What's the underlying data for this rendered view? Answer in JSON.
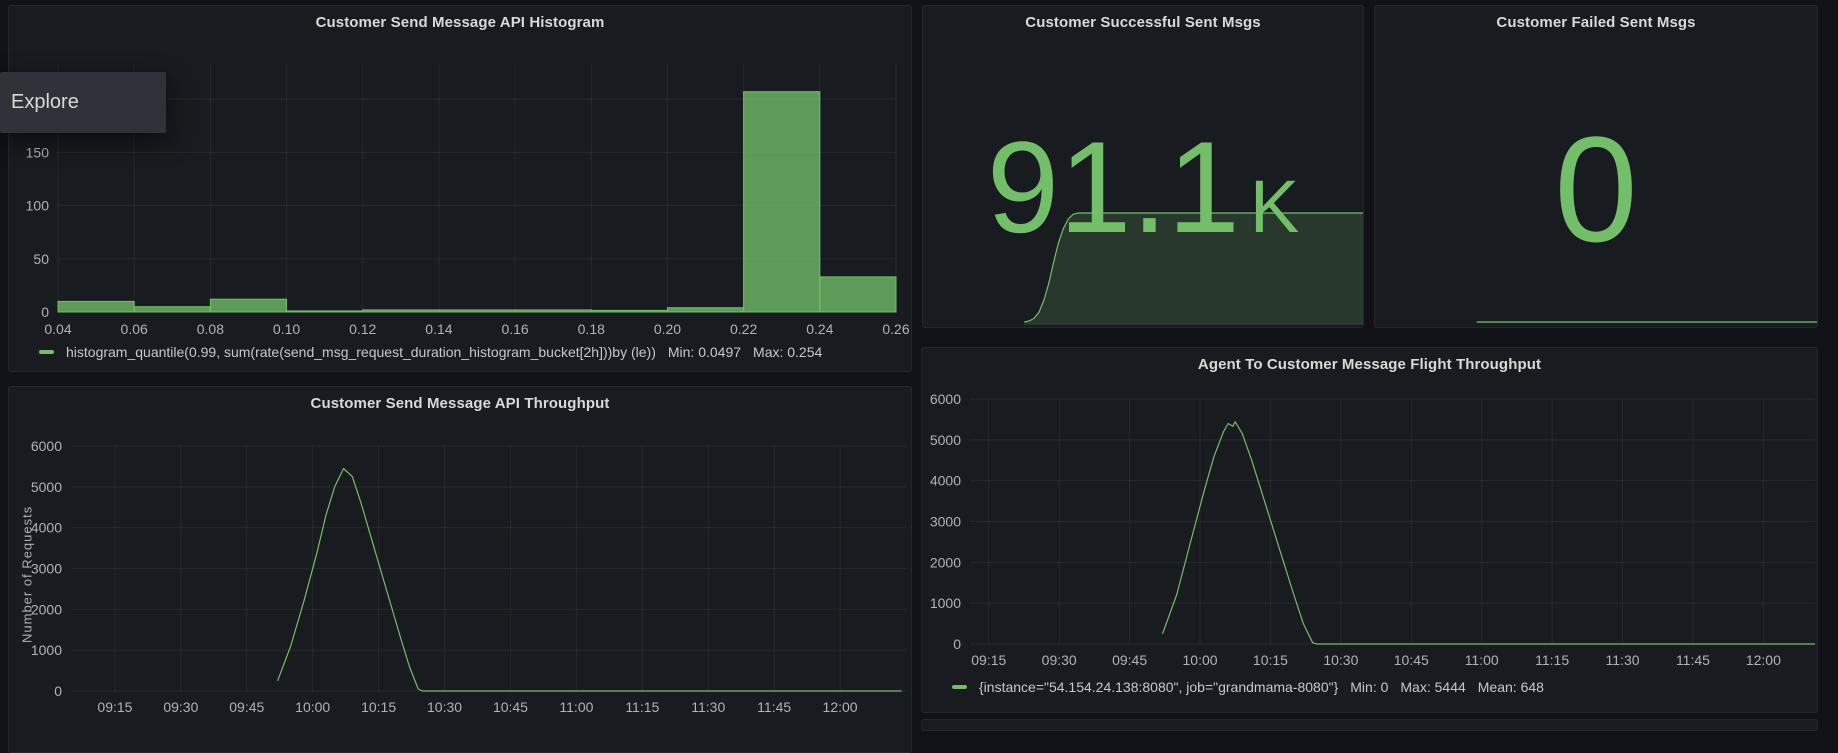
{
  "colors": {
    "green": "#73BF69",
    "bar_fill": "rgba(115,191,105,0.78)",
    "area_fill": "rgba(115,191,105,0.18)",
    "panel_bg": "#181b1f",
    "page_bg": "#111217"
  },
  "explore_tooltip": {
    "label": "Explore"
  },
  "panels": {
    "histogram": {
      "title": "Customer Send Message API Histogram"
    },
    "stat_success": {
      "title": "Customer Successful Sent Msgs",
      "value": "91.1",
      "suffix": "K"
    },
    "stat_failed": {
      "title": "Customer Failed Sent Msgs",
      "value": "0"
    },
    "throughput": {
      "title": "Customer Send Message API Throughput",
      "y_axis_label": "Number of Requests"
    },
    "agent": {
      "title": "Agent To Customer Message Flight Throughput"
    }
  },
  "legends": {
    "histogram": {
      "series": "histogram_quantile(0.99, sum(rate(send_msg_request_duration_histogram_bucket[2h]))by (le))",
      "stats": [
        "Min: 0.0497",
        "Max: 0.254"
      ]
    },
    "agent": {
      "series": "{instance=\"54.154.24.138:8080\", job=\"grandmama-8080\"}",
      "stats": [
        "Min: 0",
        "Max: 5444",
        "Mean: 648"
      ]
    }
  },
  "chart_data": [
    {
      "id": "histogram",
      "type": "bar",
      "title": "Customer Send Message API Histogram",
      "bucket_edges": [
        0.04,
        0.06,
        0.08,
        0.1,
        0.12,
        0.14,
        0.16,
        0.18,
        0.2,
        0.22,
        0.24,
        0.26
      ],
      "values": [
        10,
        5,
        12,
        1,
        2,
        2,
        2,
        1.5,
        4,
        207,
        33
      ],
      "x_tick_labels": [
        "0.04",
        "0.06",
        "0.08",
        "0.10",
        "0.12",
        "0.14",
        "0.16",
        "0.18",
        "0.20",
        "0.22",
        "0.24",
        "0.26"
      ],
      "y_ticks": [
        0,
        50,
        100,
        150,
        200
      ],
      "ylim": [
        0,
        233
      ],
      "grid": true,
      "legend_position": "bottom-left",
      "series_label": "histogram_quantile(0.99, sum(rate(send_msg_request_duration_histogram_bucket[2h]))by (le))",
      "min": 0.0497,
      "max": 0.254,
      "plot": {
        "l": 49,
        "r": 887,
        "t": 58,
        "b": 306
      }
    },
    {
      "id": "throughput",
      "type": "line",
      "title": "Customer Send Message API Throughput",
      "ylabel": "Number of Requests",
      "y_ticks": [
        0,
        1000,
        2000,
        3000,
        4000,
        5000,
        6000
      ],
      "ylim": [
        0,
        6000
      ],
      "grid": true,
      "x_ticks": [
        {
          "m": 555,
          "label": "09:15"
        },
        {
          "m": 570,
          "label": "09:30"
        },
        {
          "m": 585,
          "label": "09:45"
        },
        {
          "m": 600,
          "label": "10:00"
        },
        {
          "m": 615,
          "label": "10:15"
        },
        {
          "m": 630,
          "label": "10:30"
        },
        {
          "m": 645,
          "label": "10:45"
        },
        {
          "m": 660,
          "label": "11:00"
        },
        {
          "m": 675,
          "label": "11:15"
        },
        {
          "m": 690,
          "label": "11:30"
        },
        {
          "m": 705,
          "label": "11:45"
        },
        {
          "m": 720,
          "label": "12:00"
        }
      ],
      "time_domain": [
        545,
        735
      ],
      "points": [
        [
          592,
          250
        ],
        [
          595,
          1100
        ],
        [
          598,
          2200
        ],
        [
          601,
          3400
        ],
        [
          603,
          4300
        ],
        [
          605,
          5000
        ],
        [
          607,
          5450
        ],
        [
          609,
          5250
        ],
        [
          611,
          4600
        ],
        [
          614,
          3500
        ],
        [
          617,
          2400
        ],
        [
          620,
          1300
        ],
        [
          622,
          600
        ],
        [
          624,
          50
        ],
        [
          625,
          0
        ],
        [
          734,
          0
        ]
      ],
      "plot": {
        "l": 62,
        "r": 897,
        "t": 59,
        "b": 304
      }
    },
    {
      "id": "agent",
      "type": "line",
      "title": "Agent To Customer Message Flight Throughput",
      "y_ticks": [
        0,
        1000,
        2000,
        3000,
        4000,
        5000,
        6000
      ],
      "ylim": [
        0,
        6000
      ],
      "grid": true,
      "legend_position": "bottom-left",
      "series_label": "{instance=\"54.154.24.138:8080\", job=\"grandmama-8080\"}",
      "min": 0,
      "max": 5444,
      "mean": 648,
      "x_ticks": [
        {
          "m": 555,
          "label": "09:15"
        },
        {
          "m": 570,
          "label": "09:30"
        },
        {
          "m": 585,
          "label": "09:45"
        },
        {
          "m": 600,
          "label": "10:00"
        },
        {
          "m": 615,
          "label": "10:15"
        },
        {
          "m": 630,
          "label": "10:30"
        },
        {
          "m": 645,
          "label": "10:45"
        },
        {
          "m": 660,
          "label": "11:00"
        },
        {
          "m": 675,
          "label": "11:15"
        },
        {
          "m": 690,
          "label": "11:30"
        },
        {
          "m": 705,
          "label": "11:45"
        },
        {
          "m": 720,
          "label": "12:00"
        }
      ],
      "time_domain": [
        551,
        731
      ],
      "points": [
        [
          592,
          250
        ],
        [
          595,
          1200
        ],
        [
          598,
          2500
        ],
        [
          601,
          3800
        ],
        [
          603,
          4600
        ],
        [
          605,
          5200
        ],
        [
          606,
          5400
        ],
        [
          607,
          5330
        ],
        [
          607.5,
          5444
        ],
        [
          609,
          5150
        ],
        [
          611,
          4500
        ],
        [
          614,
          3400
        ],
        [
          617,
          2300
        ],
        [
          620,
          1200
        ],
        [
          622,
          500
        ],
        [
          624,
          30
        ],
        [
          625,
          0
        ],
        [
          731,
          0
        ]
      ],
      "plot": {
        "l": 48,
        "r": 893,
        "t": 51,
        "b": 296
      }
    },
    {
      "id": "spark-success",
      "type": "area",
      "title": "Customer Successful Sent Msgs",
      "value": 91100,
      "value_text": "91.1 K",
      "ylim": [
        0,
        91100
      ],
      "time_domain": [
        551,
        731
      ],
      "points": [
        [
          592,
          0
        ],
        [
          594,
          800
        ],
        [
          596,
          3000
        ],
        [
          598,
          8000
        ],
        [
          600,
          18000
        ],
        [
          602,
          32000
        ],
        [
          604,
          50000
        ],
        [
          606,
          66000
        ],
        [
          608,
          78000
        ],
        [
          610,
          86000
        ],
        [
          612,
          90000
        ],
        [
          614,
          91100
        ],
        [
          731,
          91100
        ]
      ],
      "plot": {
        "l": 0,
        "r": 440,
        "t": 208,
        "b": 317
      },
      "fill_base": 320
    },
    {
      "id": "spark-failed",
      "type": "area",
      "title": "Customer Failed Sent Msgs",
      "value": 0,
      "value_text": "0",
      "ylim": [
        0,
        91100
      ],
      "time_domain": [
        551,
        731
      ],
      "points": [
        [
          592,
          0
        ],
        [
          731,
          0
        ]
      ],
      "plot": {
        "l": 0,
        "r": 442,
        "t": 208,
        "b": 317
      },
      "fill_base": 318
    }
  ]
}
